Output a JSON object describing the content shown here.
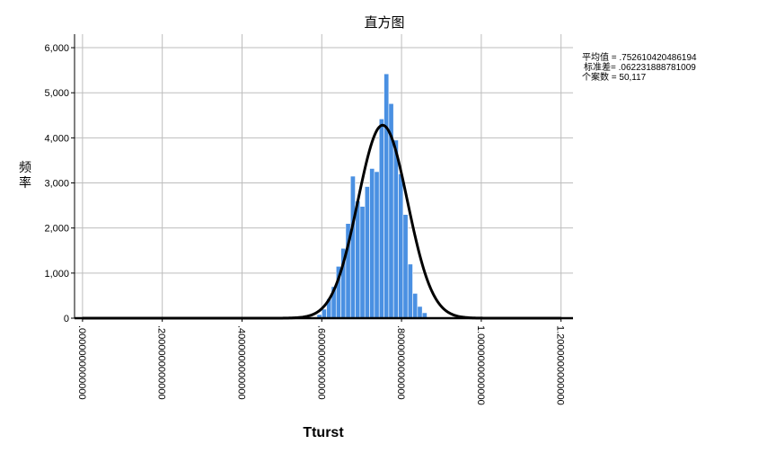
{
  "chart_data": {
    "type": "histogram",
    "title": "直方图",
    "xlabel": "Tturst",
    "ylabel_chars": [
      "频",
      "率"
    ],
    "xlim": [
      -0.02,
      1.23
    ],
    "ylim": [
      0,
      6300
    ],
    "grid": true,
    "x_ticks": [
      0.0,
      0.2,
      0.4,
      0.6,
      0.8,
      1.0,
      1.2
    ],
    "x_tick_labels": [
      ".0000000000000",
      ".2000000000000",
      ".4000000000000",
      ".6000000000000",
      ".8000000000000",
      "1.0000000000000",
      "1.2000000000000"
    ],
    "y_ticks": [
      0,
      1000,
      2000,
      3000,
      4000,
      5000,
      6000
    ],
    "y_tick_labels": [
      "0",
      "1,000",
      "2,000",
      "3,000",
      "4,000",
      "5,000",
      "6,000"
    ],
    "bar_color": "#4a90e2",
    "bar_edge_color": "#ffffff",
    "curve_color": "#000000",
    "bin_width": 0.012,
    "bins": [
      {
        "x0": 0.588,
        "count": 80
      },
      {
        "x0": 0.6,
        "count": 200
      },
      {
        "x0": 0.612,
        "count": 430
      },
      {
        "x0": 0.624,
        "count": 700
      },
      {
        "x0": 0.636,
        "count": 1150
      },
      {
        "x0": 0.648,
        "count": 1550
      },
      {
        "x0": 0.66,
        "count": 2100
      },
      {
        "x0": 0.672,
        "count": 3150
      },
      {
        "x0": 0.684,
        "count": 2600
      },
      {
        "x0": 0.696,
        "count": 2480
      },
      {
        "x0": 0.708,
        "count": 2920
      },
      {
        "x0": 0.72,
        "count": 3320
      },
      {
        "x0": 0.732,
        "count": 3250
      },
      {
        "x0": 0.744,
        "count": 4420
      },
      {
        "x0": 0.756,
        "count": 5420
      },
      {
        "x0": 0.768,
        "count": 4760
      },
      {
        "x0": 0.78,
        "count": 3950
      },
      {
        "x0": 0.792,
        "count": 3200
      },
      {
        "x0": 0.804,
        "count": 2300
      },
      {
        "x0": 0.816,
        "count": 1200
      },
      {
        "x0": 0.828,
        "count": 550
      },
      {
        "x0": 0.84,
        "count": 260
      },
      {
        "x0": 0.852,
        "count": 120
      }
    ],
    "normal_curve": {
      "mean": 0.752610420486194,
      "std": 0.062231888781009,
      "peak": 4280
    },
    "stats": [
      "平均值 = .752610420486194",
      "标准差= .062231888781009",
      "个案数 = 50,117"
    ]
  }
}
